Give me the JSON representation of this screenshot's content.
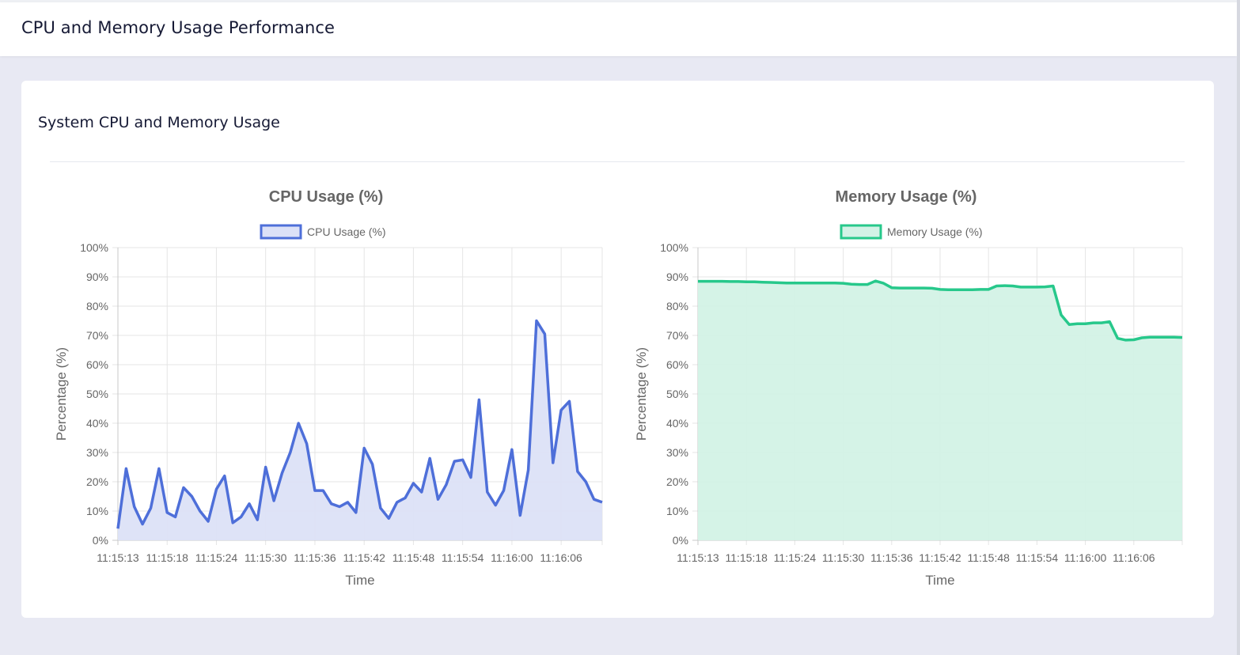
{
  "header": {
    "title": "CPU and Memory Usage Performance"
  },
  "card": {
    "title": "System CPU and Memory Usage"
  },
  "chart_data": [
    {
      "type": "area",
      "title": "CPU Usage (%)",
      "xlabel": "Time",
      "ylabel": "Percentage (%)",
      "ylim": [
        0,
        100
      ],
      "yticks": [
        "0%",
        "10%",
        "20%",
        "30%",
        "40%",
        "50%",
        "60%",
        "70%",
        "80%",
        "90%",
        "100%"
      ],
      "xticks": [
        "11:15:13",
        "11:15:18",
        "11:15:24",
        "11:15:30",
        "11:15:36",
        "11:15:42",
        "11:15:48",
        "11:15:54",
        "11:16:00",
        "11:16:06"
      ],
      "grid": true,
      "legend": "top",
      "series": [
        {
          "name": "CPU Usage (%)",
          "color": "#4e6fd9",
          "fill": "#dce1f7",
          "values": [
            4,
            24.5,
            11.5,
            5.5,
            11,
            24.5,
            9.5,
            8,
            18,
            15,
            10,
            6.5,
            17.5,
            22,
            6,
            8,
            12.5,
            7,
            25,
            13.5,
            23,
            30,
            40,
            33,
            17,
            17,
            12.5,
            11.5,
            13,
            9.5,
            31.5,
            26,
            11,
            7.5,
            13,
            14.5,
            19.5,
            16.5,
            28,
            14,
            19,
            27,
            27.5,
            21.5,
            48,
            16.5,
            12,
            17,
            31,
            8.5,
            24,
            75,
            70.5,
            26.5,
            44.5,
            47.5,
            23.5,
            20,
            14,
            13
          ]
        }
      ]
    },
    {
      "type": "area",
      "title": "Memory Usage (%)",
      "xlabel": "Time",
      "ylabel": "Percentage (%)",
      "ylim": [
        0,
        100
      ],
      "yticks": [
        "0%",
        "10%",
        "20%",
        "30%",
        "40%",
        "50%",
        "60%",
        "70%",
        "80%",
        "90%",
        "100%"
      ],
      "xticks": [
        "11:15:13",
        "11:15:18",
        "11:15:24",
        "11:15:30",
        "11:15:36",
        "11:15:42",
        "11:15:48",
        "11:15:54",
        "11:16:00",
        "11:16:06"
      ],
      "grid": true,
      "legend": "top",
      "series": [
        {
          "name": "Memory Usage (%)",
          "color": "#27c88b",
          "fill": "#d3f2e6",
          "values": [
            88.5,
            88.5,
            88.5,
            88.5,
            88.4,
            88.4,
            88.3,
            88.3,
            88.2,
            88.1,
            88,
            87.9,
            87.9,
            87.9,
            87.9,
            87.9,
            87.9,
            87.9,
            87.8,
            87.5,
            87.4,
            87.4,
            88.6,
            87.8,
            86.3,
            86.2,
            86.2,
            86.2,
            86.2,
            86.1,
            85.7,
            85.6,
            85.6,
            85.6,
            85.6,
            85.7,
            85.7,
            86.9,
            87,
            86.9,
            86.5,
            86.5,
            86.5,
            86.6,
            86.9,
            77,
            73.7,
            74,
            74,
            74.3,
            74.3,
            74.7,
            69,
            68.4,
            68.5,
            69.2,
            69.4,
            69.4,
            69.4,
            69.4,
            69.3
          ]
        }
      ]
    }
  ]
}
